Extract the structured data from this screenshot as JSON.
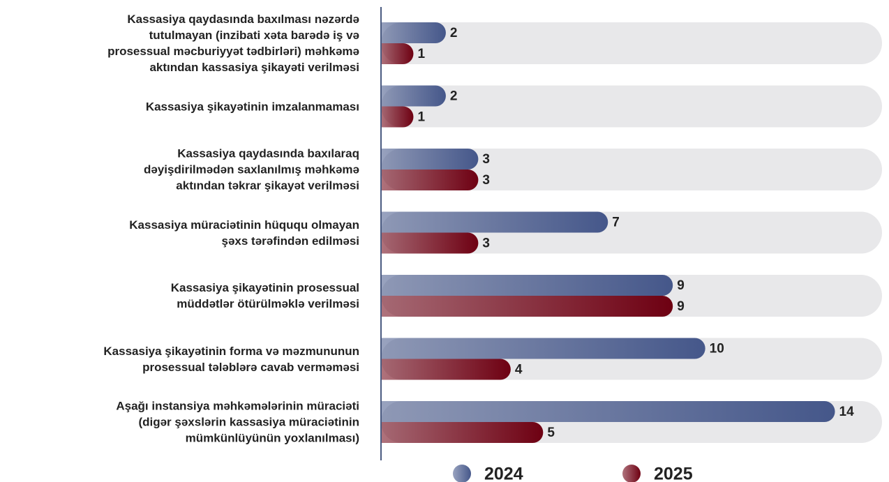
{
  "chart_data": {
    "type": "bar",
    "orientation": "horizontal",
    "categories": [
      "Kassasiya qaydasında baxılması nəzərdə\ntutulmayan (inzibati xəta barədə iş və\nprosessual məcburiyyət tədbirləri) məhkəmə\naktından kassasiya şikayəti verilməsi",
      "Kassasiya şikayətinin imzalanmaması",
      "Kassasiya qaydasında baxılaraq\ndəyişdirilmədən saxlanılmış məhkəmə\naktından təkrar şikayət verilməsi",
      "Kassasiya müraciətinin hüququ olmayan\nşəxs tərəfindən edilməsi",
      "Kassasiya şikayətinin prosessual\nmüddətlər ötürülməklə verilməsi",
      "Kassasiya şikayətinin forma və məzmununun\nprosessual tələblərə cavab verməməsi",
      "Aşağı instansiya məhkəmələrinin müraciəti\n(digər şəxslərin kassasiya müraciətinin\nmümkünlüyünün yoxlanılması)"
    ],
    "series": [
      {
        "name": "2024",
        "color": "#45578a",
        "values": [
          2,
          2,
          3,
          7,
          9,
          10,
          14
        ]
      },
      {
        "name": "2025",
        "color": "#6e0012",
        "values": [
          1,
          1,
          3,
          3,
          9,
          4,
          5
        ]
      }
    ],
    "xlim": [
      0,
      15
    ],
    "legend": "bottom"
  }
}
